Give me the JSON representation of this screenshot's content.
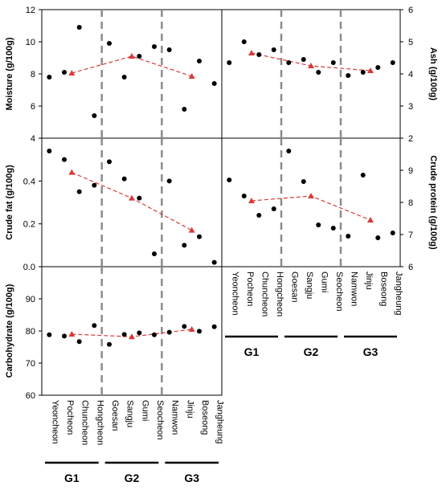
{
  "chart_data": [
    {
      "type": "scatter",
      "panel": "moisture",
      "ylabel": "Moisture (g/100g)",
      "ylim": [
        4,
        12
      ],
      "yticks": [
        4,
        6,
        8,
        10,
        12
      ],
      "yticklabels": [
        "4",
        "6",
        "8",
        "10",
        "12"
      ],
      "axis_side": "left",
      "points": [
        7.8,
        8.1,
        10.9,
        5.4,
        9.9,
        7.8,
        9.1,
        9.7,
        9.5,
        5.8,
        8.8,
        7.4
      ],
      "group_means": [
        8.05,
        9.1,
        7.85
      ]
    },
    {
      "type": "scatter",
      "panel": "ash",
      "ylabel": "Ash (g/100g)",
      "ylim": [
        2,
        6
      ],
      "yticks": [
        2,
        3,
        4,
        5,
        6
      ],
      "yticklabels": [
        "2",
        "3",
        "4",
        "5",
        "6"
      ],
      "axis_side": "right",
      "points": [
        4.35,
        5.0,
        4.6,
        4.75,
        4.35,
        4.45,
        4.05,
        4.35,
        3.95,
        4.05,
        4.2,
        4.35
      ],
      "group_means": [
        4.65,
        4.25,
        4.1
      ]
    },
    {
      "type": "scatter",
      "panel": "crude_fat",
      "ylabel": "Crude fat (g/100g)",
      "ylim": [
        0,
        0.6
      ],
      "yticks": [
        0,
        0.2,
        0.4,
        0.6
      ],
      "yticklabels": [
        "0.0",
        "0.2",
        "0.4",
        ""
      ],
      "axis_side": "left",
      "points": [
        0.54,
        0.5,
        0.35,
        0.38,
        0.49,
        0.41,
        0.32,
        0.06,
        0.4,
        0.1,
        0.14,
        0.02
      ],
      "group_means": [
        0.44,
        0.32,
        0.17
      ]
    },
    {
      "type": "scatter",
      "panel": "crude_protein",
      "ylabel": "Crude protein (g/100g)",
      "ylim": [
        6,
        10
      ],
      "yticks": [
        6,
        7,
        8,
        9,
        10
      ],
      "yticklabels": [
        "6",
        "7",
        "8",
        "9",
        ""
      ],
      "axis_side": "right",
      "points": [
        8.7,
        8.2,
        7.6,
        7.8,
        9.6,
        8.65,
        7.3,
        7.2,
        6.95,
        8.85,
        6.9,
        7.05
      ],
      "group_means": [
        8.05,
        8.2,
        7.45
      ]
    },
    {
      "type": "scatter",
      "panel": "carbohydrate",
      "ylabel": "Carbohydrate (g/100g)",
      "ylim": [
        60,
        100
      ],
      "yticks": [
        60,
        70,
        80,
        90,
        100
      ],
      "yticklabels": [
        "60",
        "70",
        "80",
        "90",
        ""
      ],
      "axis_side": "left",
      "points": [
        78.8,
        78.4,
        76.7,
        81.7,
        75.8,
        78.9,
        79.4,
        78.8,
        79.6,
        81.4,
        79.9,
        81.3
      ],
      "group_means": [
        79.0,
        78.2,
        80.5
      ]
    }
  ],
  "regions": [
    "Yeoncheon",
    "Pocheon",
    "Chuncheon",
    "Hongcheon",
    "Goesan",
    "Sangju",
    "Gumi",
    "Seocheon",
    "Namwon",
    "Jinju",
    "Boseong",
    "Jangheung"
  ],
  "groups": [
    "G1",
    "G2",
    "G3"
  ],
  "colors": {
    "points": "#000000",
    "means": "#d93a3a",
    "dividers": "#8c8c8c"
  }
}
